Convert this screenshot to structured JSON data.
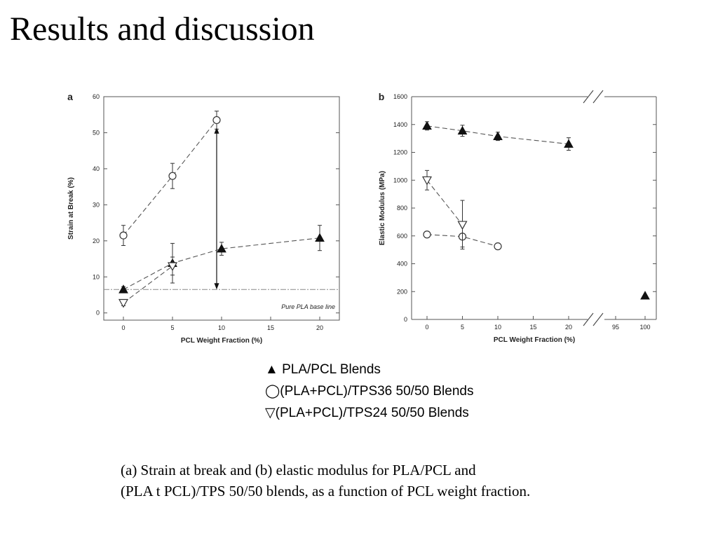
{
  "page": {
    "title": "Results and discussion"
  },
  "legend": [
    {
      "symbol": "▲",
      "label": " PLA/PCL Blends"
    },
    {
      "symbol": "◯",
      "label": "(PLA+PCL)/TPS36 50/50 Blends"
    },
    {
      "symbol": "▽",
      "label": "(PLA+PCL)/TPS24 50/50 Blends"
    }
  ],
  "caption": {
    "line1": "(a) Strain at break and (b) elastic modulus for PLA/PCL and",
    "line2": "(PLA t PCL)/TPS 50/50 blends, as a function of PCL weight fraction."
  },
  "chart_data": [
    {
      "panel": "a",
      "type": "scatter",
      "xlabel": "PCL Weight Fraction (%)",
      "ylabel": "Strain at Break (%)",
      "xlim": [
        -2,
        22
      ],
      "ylim": [
        -2,
        60
      ],
      "xticks": [
        0,
        5,
        10,
        15,
        20
      ],
      "yticks": [
        0,
        10,
        20,
        30,
        40,
        50,
        60
      ],
      "annotation": "Pure PLA base line",
      "baseline": 6.5,
      "arrow": {
        "x": 9.5,
        "from": 6.5,
        "to": 51.5
      },
      "series": [
        {
          "marker": "triangle-filled",
          "x": [
            0,
            5,
            10,
            20
          ],
          "y": [
            6.5,
            13.8,
            17.8,
            20.8
          ],
          "err": [
            0.8,
            5.5,
            1.8,
            3.5
          ]
        },
        {
          "marker": "circle-open",
          "x": [
            0,
            5,
            9.5
          ],
          "y": [
            21.5,
            38,
            53.5
          ],
          "err": [
            2.8,
            3.5,
            2.5
          ]
        },
        {
          "marker": "triangle-open-down",
          "x": [
            0,
            5
          ],
          "y": [
            2.8,
            13
          ],
          "err": [
            0.8,
            2.5
          ]
        }
      ]
    },
    {
      "panel": "b",
      "type": "scatter",
      "xlabel": "PCL Weight Fraction (%)",
      "ylabel": "Elastic Modulus (MPa)",
      "ylim": [
        0,
        1600
      ],
      "xticks": [
        "0",
        "5",
        "10",
        "15",
        "20",
        "95",
        "100"
      ],
      "yticks": [
        0,
        200,
        400,
        600,
        800,
        1000,
        1200,
        1400,
        1600
      ],
      "axis_break": "between 20 and 95",
      "series": [
        {
          "marker": "triangle-filled",
          "x": [
            0,
            5,
            10,
            20,
            100
          ],
          "y": [
            1390,
            1355,
            1315,
            1260,
            170
          ],
          "err": [
            30,
            40,
            30,
            45,
            0
          ],
          "connected": [
            true,
            true,
            true,
            true,
            false
          ]
        },
        {
          "marker": "circle-open",
          "x": [
            0,
            5,
            10
          ],
          "y": [
            610,
            595,
            525
          ],
          "err": [
            15,
            75,
            10
          ]
        },
        {
          "marker": "triangle-open-down",
          "x": [
            0,
            5
          ],
          "y": [
            1000,
            680
          ],
          "err": [
            70,
            175
          ]
        }
      ]
    }
  ]
}
